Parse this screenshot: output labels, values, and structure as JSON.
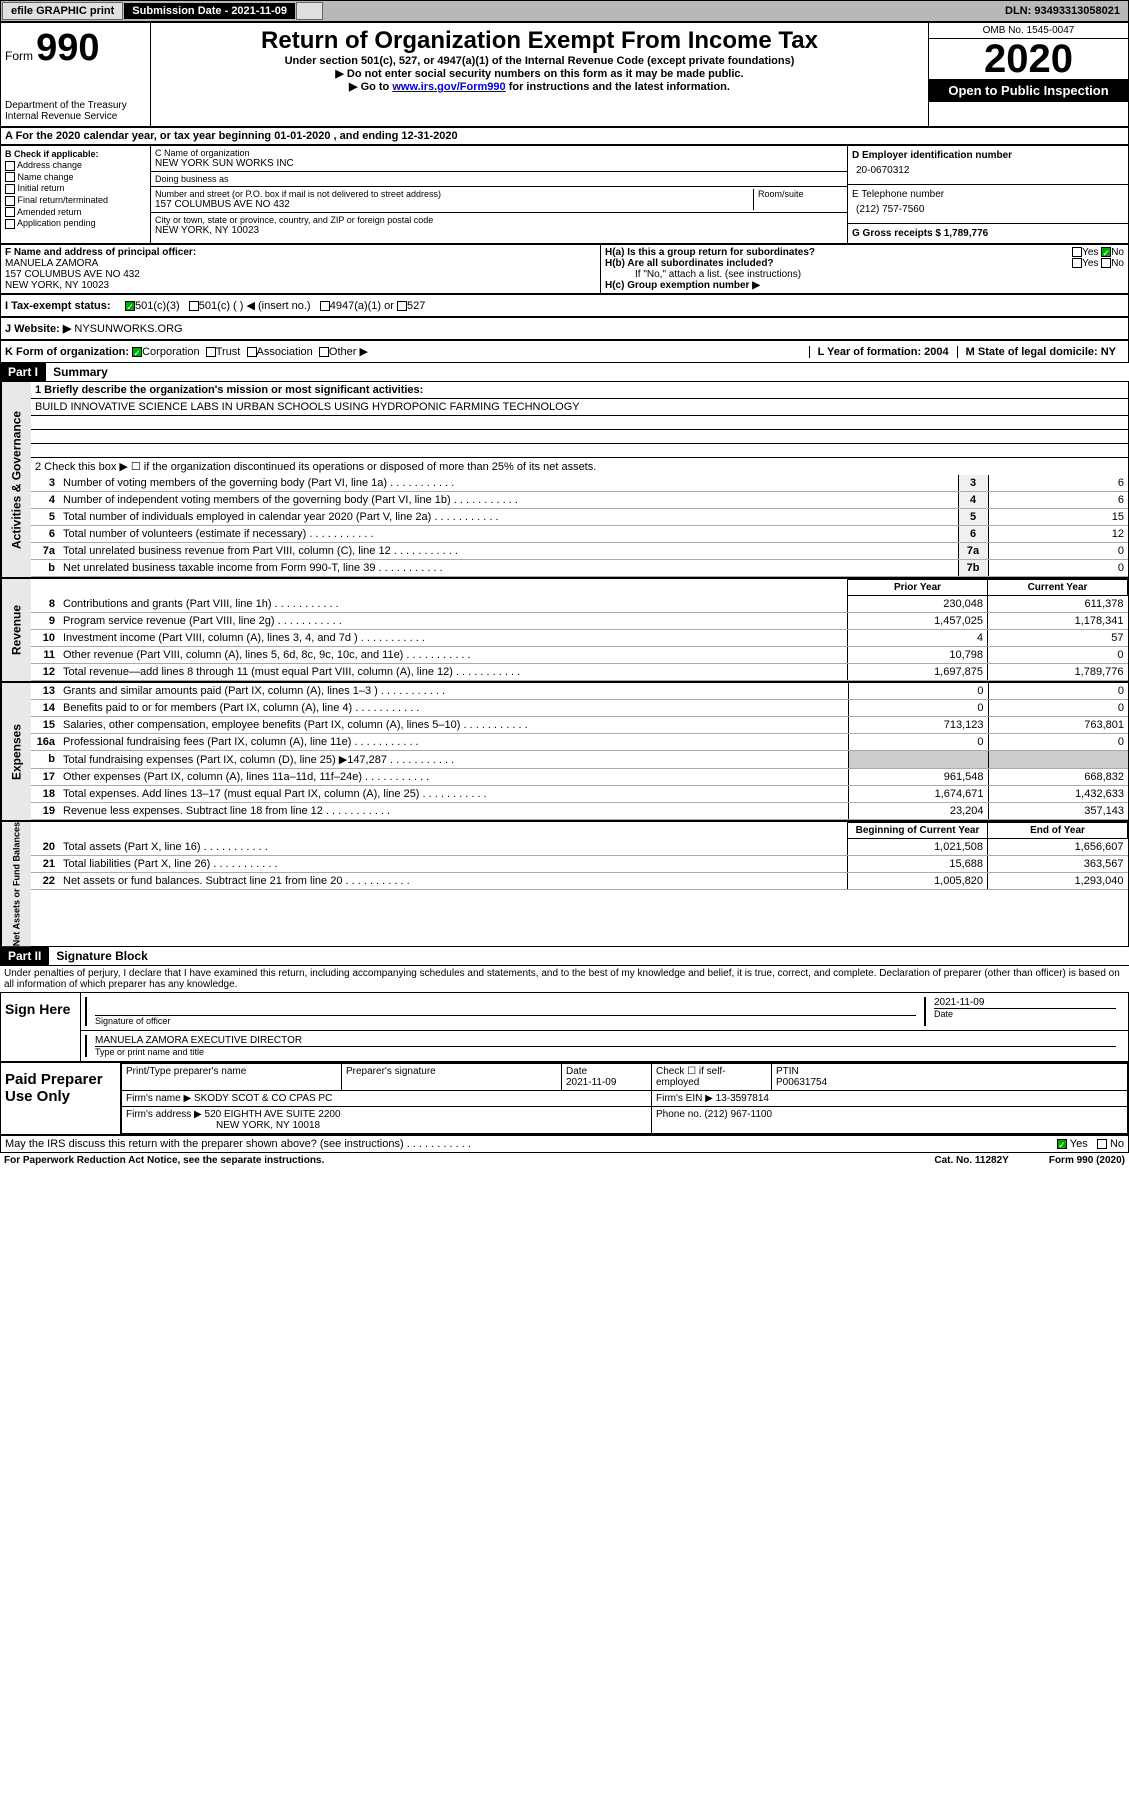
{
  "topbar": {
    "efile": "efile GRAPHIC print",
    "submission_label": "Submission Date - 2021-11-09",
    "dln": "DLN: 93493313058021"
  },
  "header": {
    "form_word": "Form",
    "form_number": "990",
    "dept": "Department of the Treasury",
    "irs": "Internal Revenue Service",
    "title": "Return of Organization Exempt From Income Tax",
    "subtitle": "Under section 501(c), 527, or 4947(a)(1) of the Internal Revenue Code (except private foundations)",
    "note1": "Do not enter social security numbers on this form as it may be made public.",
    "note2_pre": "Go to ",
    "note2_link": "www.irs.gov/Form990",
    "note2_post": " for instructions and the latest information.",
    "omb": "OMB No. 1545-0047",
    "year": "2020",
    "open_public": "Open to Public Inspection"
  },
  "period": "A For the 2020 calendar year, or tax year beginning 01-01-2020     , and ending 12-31-2020",
  "applicable": {
    "header": "B Check if applicable:",
    "items": [
      "Address change",
      "Name change",
      "Initial return",
      "Final return/terminated",
      "Amended return",
      "Application pending"
    ]
  },
  "entity": {
    "name_label": "C Name of organization",
    "name": "NEW YORK SUN WORKS INC",
    "dba_label": "Doing business as",
    "dba": "",
    "street_label": "Number and street (or P.O. box if mail is not delivered to street address)",
    "room_label": "Room/suite",
    "street": "157 COLUMBUS AVE NO 432",
    "city_label": "City or town, state or province, country, and ZIP or foreign postal code",
    "city": "NEW YORK, NY  10023",
    "ein_label": "D Employer identification number",
    "ein": "20-0670312",
    "phone_label": "E Telephone number",
    "phone": "(212) 757-7560",
    "gross_label": "G Gross receipts $ 1,789,776"
  },
  "officer": {
    "label": "F  Name and address of principal officer:",
    "name": "MANUELA ZAMORA",
    "addr1": "157 COLUMBUS AVE NO 432",
    "addr2": "NEW YORK, NY  10023"
  },
  "group": {
    "ha": "H(a)  Is this a group return for subordinates?",
    "hb": "H(b)  Are all subordinates included?",
    "hb_note": "If \"No,\" attach a list. (see instructions)",
    "hc": "H(c)  Group exemption number ▶",
    "yes": "Yes",
    "no": "No"
  },
  "status": {
    "label": "I   Tax-exempt status:",
    "o1": "501(c)(3)",
    "o2": "501(c) (  ) ◀ (insert no.)",
    "o3": "4947(a)(1) or",
    "o4": "527"
  },
  "website": {
    "label": "J   Website: ▶",
    "value": "NYSUNWORKS.ORG"
  },
  "orgform": {
    "label": "K Form of organization:",
    "o1": "Corporation",
    "o2": "Trust",
    "o3": "Association",
    "o4": "Other ▶",
    "year_label": "L Year of formation: 2004",
    "state_label": "M State of legal domicile: NY"
  },
  "parts": {
    "p1": "Part I",
    "p1_title": "Summary",
    "p2": "Part II",
    "p2_title": "Signature Block"
  },
  "summary": {
    "line1_label": "1   Briefly describe the organization's mission or most significant activities:",
    "line1_value": "BUILD INNOVATIVE SCIENCE LABS IN URBAN SCHOOLS USING HYDROPONIC FARMING TECHNOLOGY",
    "line2": "2   Check this box ▶ ☐  if the organization discontinued its operations or disposed of more than 25% of its net assets.",
    "col_prior": "Prior Year",
    "col_current": "Current Year",
    "col_begin": "Beginning of Current Year",
    "col_end": "End of Year",
    "rows_gov": [
      {
        "n": "3",
        "t": "Number of voting members of the governing body (Part VI, line 1a)",
        "b": "3",
        "v": "6"
      },
      {
        "n": "4",
        "t": "Number of independent voting members of the governing body (Part VI, line 1b)",
        "b": "4",
        "v": "6"
      },
      {
        "n": "5",
        "t": "Total number of individuals employed in calendar year 2020 (Part V, line 2a)",
        "b": "5",
        "v": "15"
      },
      {
        "n": "6",
        "t": "Total number of volunteers (estimate if necessary)",
        "b": "6",
        "v": "12"
      },
      {
        "n": "7a",
        "t": "Total unrelated business revenue from Part VIII, column (C), line 12",
        "b": "7a",
        "v": "0"
      },
      {
        "n": "b",
        "t": "Net unrelated business taxable income from Form 990-T, line 39",
        "b": "7b",
        "v": "0"
      }
    ],
    "rows_rev": [
      {
        "n": "8",
        "t": "Contributions and grants (Part VIII, line 1h)",
        "p": "230,048",
        "c": "611,378"
      },
      {
        "n": "9",
        "t": "Program service revenue (Part VIII, line 2g)",
        "p": "1,457,025",
        "c": "1,178,341"
      },
      {
        "n": "10",
        "t": "Investment income (Part VIII, column (A), lines 3, 4, and 7d )",
        "p": "4",
        "c": "57"
      },
      {
        "n": "11",
        "t": "Other revenue (Part VIII, column (A), lines 5, 6d, 8c, 9c, 10c, and 11e)",
        "p": "10,798",
        "c": "0"
      },
      {
        "n": "12",
        "t": "Total revenue—add lines 8 through 11 (must equal Part VIII, column (A), line 12)",
        "p": "1,697,875",
        "c": "1,789,776"
      }
    ],
    "rows_exp": [
      {
        "n": "13",
        "t": "Grants and similar amounts paid (Part IX, column (A), lines 1–3 )",
        "p": "0",
        "c": "0"
      },
      {
        "n": "14",
        "t": "Benefits paid to or for members (Part IX, column (A), line 4)",
        "p": "0",
        "c": "0"
      },
      {
        "n": "15",
        "t": "Salaries, other compensation, employee benefits (Part IX, column (A), lines 5–10)",
        "p": "713,123",
        "c": "763,801"
      },
      {
        "n": "16a",
        "t": "Professional fundraising fees (Part IX, column (A), line 11e)",
        "p": "0",
        "c": "0"
      },
      {
        "n": "b",
        "t": "Total fundraising expenses (Part IX, column (D), line 25) ▶147,287",
        "p": "",
        "c": "",
        "shaded": true
      },
      {
        "n": "17",
        "t": "Other expenses (Part IX, column (A), lines 11a–11d, 11f–24e)",
        "p": "961,548",
        "c": "668,832"
      },
      {
        "n": "18",
        "t": "Total expenses. Add lines 13–17 (must equal Part IX, column (A), line 25)",
        "p": "1,674,671",
        "c": "1,432,633"
      },
      {
        "n": "19",
        "t": "Revenue less expenses. Subtract line 18 from line 12",
        "p": "23,204",
        "c": "357,143"
      }
    ],
    "rows_net": [
      {
        "n": "20",
        "t": "Total assets (Part X, line 16)",
        "p": "1,021,508",
        "c": "1,656,607"
      },
      {
        "n": "21",
        "t": "Total liabilities (Part X, line 26)",
        "p": "15,688",
        "c": "363,567"
      },
      {
        "n": "22",
        "t": "Net assets or fund balances. Subtract line 21 from line 20",
        "p": "1,005,820",
        "c": "1,293,040"
      }
    ]
  },
  "sidelabels": {
    "gov": "Activities & Governance",
    "rev": "Revenue",
    "exp": "Expenses",
    "net": "Net Assets or Fund Balances"
  },
  "penalties": "Under penalties of perjury, I declare that I have examined this return, including accompanying schedules and statements, and to the best of my knowledge and belief, it is true, correct, and complete. Declaration of preparer (other than officer) is based on all information of which preparer has any knowledge.",
  "sign": {
    "left": "Sign Here",
    "sig_label": "Signature of officer",
    "date_label": "Date",
    "date": "2021-11-09",
    "name": "MANUELA ZAMORA  EXECUTIVE DIRECTOR",
    "name_label": "Type or print name and title"
  },
  "prep": {
    "left": "Paid Preparer Use Only",
    "c1": "Print/Type preparer's name",
    "c2": "Preparer's signature",
    "c3": "Date",
    "c3v": "2021-11-09",
    "c4": "Check ☐ if self-employed",
    "c5": "PTIN",
    "c5v": "P00631754",
    "firm_label": "Firm's name    ▶",
    "firm": "SKODY SCOT & CO CPAS PC",
    "ein_label": "Firm's EIN ▶",
    "ein": "13-3597814",
    "addr_label": "Firm's address ▶",
    "addr1": "520 EIGHTH AVE SUITE 2200",
    "addr2": "NEW YORK, NY  10018",
    "phone_label": "Phone no.",
    "phone": "(212) 967-1100"
  },
  "discuss": {
    "q": "May the IRS discuss this return with the preparer shown above? (see instructions)",
    "yes": "Yes",
    "no": "No"
  },
  "footer": {
    "left": "For Paperwork Reduction Act Notice, see the separate instructions.",
    "mid": "Cat. No. 11282Y",
    "right": "Form 990 (2020)"
  }
}
